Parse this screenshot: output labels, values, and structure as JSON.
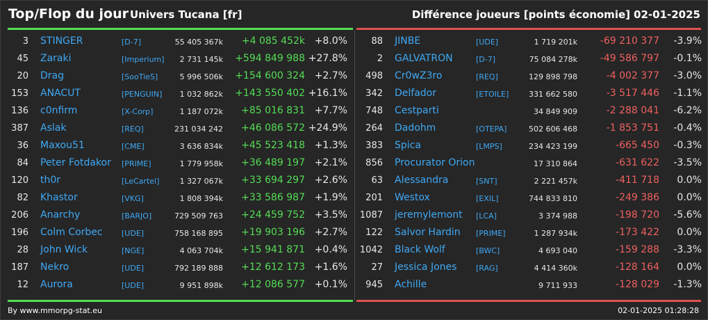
{
  "header": {
    "title": "Top/Flop du jour",
    "universe": "Univers Tucana [fr]",
    "subtitle": "Différence joueurs [points économie]",
    "date": "02-01-2025"
  },
  "colors": {
    "up": "#55dd55",
    "down": "#f06060",
    "link": "#3fa9f5"
  },
  "top": [
    {
      "rank": "3",
      "name": "STINGER",
      "tag": "[D-7]",
      "points": "55 405 367k",
      "delta": "+4 085 452k",
      "pct": "+8.0%"
    },
    {
      "rank": "45",
      "name": "Zaraki",
      "tag": "[Imperium]",
      "points": "2 731 145k",
      "delta": "+594 849 988",
      "pct": "+27.8%"
    },
    {
      "rank": "20",
      "name": "Drag",
      "tag": "[SooTieS]",
      "points": "5 996 506k",
      "delta": "+154 600 324",
      "pct": "+2.7%"
    },
    {
      "rank": "153",
      "name": "ANACUT",
      "tag": "[PENGUIN]",
      "points": "1 032 862k",
      "delta": "+143 550 402",
      "pct": "+16.1%"
    },
    {
      "rank": "136",
      "name": "c0nfirm",
      "tag": "[X-Corp]",
      "points": "1 187 072k",
      "delta": "+85 016 831",
      "pct": "+7.7%"
    },
    {
      "rank": "387",
      "name": "Aslak",
      "tag": "[REQ]",
      "points": "231 034 242",
      "delta": "+46 086 572",
      "pct": "+24.9%"
    },
    {
      "rank": "36",
      "name": "Maxou51",
      "tag": "[CME]",
      "points": "3 636 834k",
      "delta": "+45 523 418",
      "pct": "+1.3%"
    },
    {
      "rank": "84",
      "name": "Peter Fotdakor",
      "tag": "[PRIME]",
      "points": "1 779 958k",
      "delta": "+36 489 197",
      "pct": "+2.1%"
    },
    {
      "rank": "120",
      "name": "th0r",
      "tag": "[LeCartel]",
      "points": "1 327 067k",
      "delta": "+33 694 297",
      "pct": "+2.6%"
    },
    {
      "rank": "82",
      "name": "Khastor",
      "tag": "[VKG]",
      "points": "1 808 394k",
      "delta": "+33 586 987",
      "pct": "+1.9%"
    },
    {
      "rank": "206",
      "name": "Anarchy",
      "tag": "[BARJO]",
      "points": "729 509 763",
      "delta": "+24 459 752",
      "pct": "+3.5%"
    },
    {
      "rank": "196",
      "name": "Colm Corbec",
      "tag": "[UDE]",
      "points": "758 168 895",
      "delta": "+19 903 196",
      "pct": "+2.7%"
    },
    {
      "rank": "28",
      "name": "John Wick",
      "tag": "[NGE]",
      "points": "4 063 704k",
      "delta": "+15 941 871",
      "pct": "+0.4%"
    },
    {
      "rank": "187",
      "name": "Nekro",
      "tag": "[UDE]",
      "points": "792 189 888",
      "delta": "+12 612 173",
      "pct": "+1.6%"
    },
    {
      "rank": "12",
      "name": "Aurora",
      "tag": "[UDE]",
      "points": "9 951 898k",
      "delta": "+12 086 577",
      "pct": "+0.1%"
    }
  ],
  "flop": [
    {
      "rank": "88",
      "name": "JINBE",
      "tag": "[UDE]",
      "points": "1 719 201k",
      "delta": "-69 210 377",
      "pct": "-3.9%"
    },
    {
      "rank": "2",
      "name": "GALVATRON",
      "tag": "[D-7]",
      "points": "75 084 278k",
      "delta": "-49 586 797",
      "pct": "-0.1%"
    },
    {
      "rank": "498",
      "name": "Cr0wZ3ro",
      "tag": "[REQ]",
      "points": "129 898 798",
      "delta": "-4 002 377",
      "pct": "-3.0%"
    },
    {
      "rank": "342",
      "name": "Delfador",
      "tag": "[ETOILE]",
      "points": "331 662 580",
      "delta": "-3 517 446",
      "pct": "-1.1%"
    },
    {
      "rank": "748",
      "name": "Cestparti",
      "tag": "",
      "points": "34 849 909",
      "delta": "-2 288 041",
      "pct": "-6.2%"
    },
    {
      "rank": "264",
      "name": "Dadohm",
      "tag": "[OTEPA]",
      "points": "502 606 468",
      "delta": "-1 853 751",
      "pct": "-0.4%"
    },
    {
      "rank": "383",
      "name": "Spica",
      "tag": "[LMPS]",
      "points": "234 423 199",
      "delta": "-665 450",
      "pct": "-0.3%"
    },
    {
      "rank": "856",
      "name": "Procurator Orion",
      "tag": "",
      "points": "17 310 864",
      "delta": "-631 622",
      "pct": "-3.5%"
    },
    {
      "rank": "63",
      "name": "Alessandra",
      "tag": "[SNT]",
      "points": "2 221 457k",
      "delta": "-411 718",
      "pct": "0.0%"
    },
    {
      "rank": "201",
      "name": "Westox",
      "tag": "[EXIL]",
      "points": "744 833 810",
      "delta": "-249 386",
      "pct": "0.0%"
    },
    {
      "rank": "1087",
      "name": "jeremylemont",
      "tag": "[LCA]",
      "points": "3 374 988",
      "delta": "-198 720",
      "pct": "-5.6%"
    },
    {
      "rank": "122",
      "name": "Salvor Hardin",
      "tag": "[PRIME]",
      "points": "1 287 934k",
      "delta": "-173 422",
      "pct": "0.0%"
    },
    {
      "rank": "1042",
      "name": "Black Wolf",
      "tag": "[BWC]",
      "points": "4 693 040",
      "delta": "-159 288",
      "pct": "-3.3%"
    },
    {
      "rank": "27",
      "name": "Jessica Jones",
      "tag": "[RAG]",
      "points": "4 414 360k",
      "delta": "-128 164",
      "pct": "0.0%"
    },
    {
      "rank": "945",
      "name": "Achille",
      "tag": "",
      "points": "9 711 933",
      "delta": "-128 029",
      "pct": "-1.3%"
    }
  ],
  "footer": {
    "credit": "By www.mmorpg-stat.eu",
    "timestamp": "02-01-2025 01:28:28"
  }
}
